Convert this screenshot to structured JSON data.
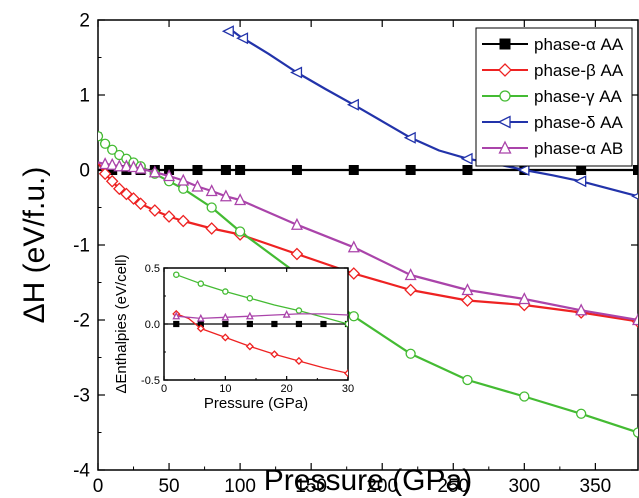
{
  "chart_data": [
    {
      "type": "line",
      "title": "",
      "xlabel": "Pressure (GPa)",
      "ylabel": "ΔH (eV/f.u.)",
      "xlim": [
        0,
        380
      ],
      "ylim": [
        -4,
        2
      ],
      "xticks": [
        0,
        50,
        100,
        150,
        200,
        250,
        300,
        350
      ],
      "yticks": [
        -4,
        -3,
        -2,
        -1,
        0,
        1,
        2
      ],
      "grid": false,
      "legend_position": "top-right",
      "series": [
        {
          "name": "phase-α AA",
          "color": "#000000",
          "marker": "square-filled",
          "x": [
            0,
            10,
            20,
            30,
            40,
            50,
            70,
            90,
            100,
            140,
            180,
            220,
            260,
            300,
            340,
            380
          ],
          "y": [
            0,
            0,
            0,
            0,
            0,
            0,
            0,
            0,
            0,
            0,
            0,
            0,
            0,
            0,
            0,
            0
          ],
          "marker_x": [
            10,
            20,
            30,
            40,
            50,
            70,
            90,
            100,
            140,
            180,
            220,
            260,
            300,
            340,
            380
          ]
        },
        {
          "name": "phase-β AA",
          "color": "#ee2222",
          "marker": "diamond-open",
          "x": [
            0,
            5,
            10,
            15,
            20,
            25,
            30,
            40,
            50,
            60,
            80,
            100,
            140,
            180,
            220,
            260,
            300,
            340,
            380
          ],
          "y": [
            0.1,
            -0.05,
            -0.15,
            -0.25,
            -0.32,
            -0.38,
            -0.45,
            -0.54,
            -0.62,
            -0.68,
            -0.78,
            -0.86,
            -1.12,
            -1.38,
            -1.6,
            -1.74,
            -1.8,
            -1.9,
            -2.02
          ],
          "marker_x": [
            5,
            10,
            15,
            20,
            25,
            30,
            40,
            50,
            60,
            80,
            100,
            140,
            180,
            220,
            260,
            300,
            340,
            380
          ]
        },
        {
          "name": "phase-γ AA",
          "color": "#44bb33",
          "marker": "circle-open",
          "x": [
            0,
            5,
            10,
            15,
            20,
            25,
            30,
            40,
            50,
            60,
            80,
            100,
            140,
            180,
            220,
            260,
            300,
            340,
            380
          ],
          "y": [
            0.45,
            0.35,
            0.27,
            0.2,
            0.15,
            0.1,
            0.05,
            -0.05,
            -0.15,
            -0.25,
            -0.5,
            -0.82,
            -1.38,
            -1.95,
            -2.45,
            -2.8,
            -3.02,
            -3.25,
            -3.5
          ],
          "marker_x": [
            0,
            5,
            10,
            15,
            20,
            25,
            30,
            40,
            50,
            60,
            80,
            100,
            140,
            180,
            220,
            260,
            300,
            340,
            380
          ]
        },
        {
          "name": "phase-δ AA",
          "color": "#2233aa",
          "marker": "triangle-left-open",
          "x": [
            95,
            100,
            120,
            140,
            160,
            180,
            200,
            220,
            240,
            260,
            280,
            300,
            320,
            340,
            360,
            380
          ],
          "y": [
            1.85,
            1.78,
            1.55,
            1.3,
            1.08,
            0.87,
            0.65,
            0.43,
            0.26,
            0.15,
            0.08,
            0.0,
            -0.07,
            -0.15,
            -0.25,
            -0.35
          ],
          "marker_x": [
            92,
            102,
            140,
            180,
            220,
            260,
            300,
            340,
            380
          ]
        },
        {
          "name": "phase-α AB",
          "color": "#aa44aa",
          "marker": "triangle-up-open",
          "x": [
            0,
            5,
            10,
            15,
            20,
            25,
            30,
            40,
            50,
            60,
            70,
            80,
            90,
            100,
            140,
            180,
            220,
            260,
            300,
            340,
            380
          ],
          "y": [
            0.1,
            0.08,
            0.07,
            0.05,
            0.05,
            0.04,
            0.02,
            -0.03,
            -0.08,
            -0.14,
            -0.22,
            -0.28,
            -0.35,
            -0.4,
            -0.73,
            -1.03,
            -1.4,
            -1.6,
            -1.72,
            -1.87,
            -2.0
          ],
          "marker_x": [
            5,
            10,
            15,
            20,
            25,
            30,
            40,
            50,
            60,
            70,
            80,
            90,
            100,
            140,
            180,
            220,
            260,
            300,
            340,
            380
          ]
        }
      ]
    },
    {
      "type": "line",
      "title": "",
      "xlabel": "Pressure (GPa)",
      "ylabel": "ΔEnthalpies (eV/cell)",
      "xlim": [
        0,
        30
      ],
      "ylim": [
        -0.5,
        0.5
      ],
      "xticks": [
        0,
        10,
        20,
        30
      ],
      "yticks": [
        -0.5,
        0.0,
        0.5
      ],
      "ytick_labels": [
        "-0.5",
        "0.0",
        "0.5"
      ],
      "grid": false,
      "legend_position": "none",
      "series": [
        {
          "color": "#000000",
          "marker": "square-filled",
          "x": [
            0,
            2,
            6,
            10,
            14,
            18,
            22,
            26,
            30
          ],
          "y": [
            0,
            0,
            0,
            0,
            0,
            0,
            0,
            0,
            0
          ],
          "marker_x": [
            2,
            6,
            10,
            14,
            18,
            22,
            26,
            30
          ]
        },
        {
          "color": "#ee2222",
          "marker": "diamond-open",
          "x": [
            2,
            4,
            6,
            10,
            14,
            18,
            22,
            26,
            30
          ],
          "y": [
            0.09,
            0.05,
            -0.04,
            -0.12,
            -0.2,
            -0.27,
            -0.33,
            -0.39,
            -0.44
          ],
          "marker_x": [
            2,
            6,
            10,
            14,
            18,
            22,
            30
          ]
        },
        {
          "color": "#44bb33",
          "marker": "circle-open",
          "x": [
            2,
            6,
            10,
            14,
            18,
            22,
            26,
            30
          ],
          "y": [
            0.44,
            0.36,
            0.29,
            0.23,
            0.17,
            0.12,
            0.06,
            0.0
          ],
          "marker_x": [
            2,
            6,
            10,
            14,
            22,
            30
          ]
        },
        {
          "color": "#aa44aa",
          "marker": "triangle-up-open",
          "x": [
            2,
            6,
            10,
            14,
            18,
            22,
            26,
            30
          ],
          "y": [
            0.07,
            0.05,
            0.06,
            0.07,
            0.08,
            0.09,
            0.09,
            0.08
          ],
          "marker_x": [
            2,
            6,
            10,
            14,
            20
          ]
        }
      ]
    }
  ]
}
